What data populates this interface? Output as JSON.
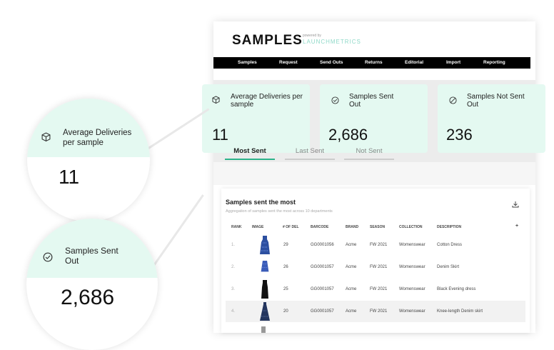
{
  "app": {
    "logo": "SAMPLES",
    "powered_by": "powered by",
    "powered_brand": "LAUNCHMETRICS"
  },
  "nav": {
    "items": [
      "Samples",
      "Request",
      "Send Outs",
      "Returns",
      "Editorial",
      "Import",
      "Reporting"
    ]
  },
  "stats": [
    {
      "label": "Average Deliveries per sample",
      "value": "11",
      "icon": "box-icon"
    },
    {
      "label": "Samples Sent Out",
      "value": "2,686",
      "icon": "check-circle-icon"
    },
    {
      "label": "Samples Not Sent Out",
      "value": "236",
      "icon": "blocked-circle-icon"
    }
  ],
  "zoom": {
    "avg": {
      "label_line1": "Average Deliveries",
      "label_line2": "per sample",
      "value": "11"
    },
    "sent": {
      "label_line1": "Samples Sent",
      "label_line2": "Out",
      "value": "2,686"
    }
  },
  "tabs": [
    {
      "label": "Most Sent",
      "active": true
    },
    {
      "label": "Last Sent",
      "active": false
    },
    {
      "label": "Not Sent",
      "active": false
    }
  ],
  "table": {
    "title": "Samples sent the most",
    "subtitle": "Aggregation of samples sent the most across 10 departments",
    "columns": [
      "RANK",
      "IMAGE",
      "# OF DEL",
      "BARCODE",
      "BRAND",
      "SEASON",
      "COLLECTION",
      "DESCRIPTION",
      "+"
    ],
    "rows": [
      {
        "rank": "1.",
        "del": "29",
        "barcode": "GG0001056",
        "brand": "Acme",
        "season": "FW 2021",
        "collection": "Womenswear",
        "description": "Cotton Dress",
        "dress_color": "#2c4fa0"
      },
      {
        "rank": "2.",
        "del": "26",
        "barcode": "GG0001057",
        "brand": "Acme",
        "season": "FW 2021",
        "collection": "Womenswear",
        "description": "Denim Skirt",
        "dress_color": "#3a5cb8"
      },
      {
        "rank": "3.",
        "del": "25",
        "barcode": "GG0001057",
        "brand": "Acme",
        "season": "FW 2021",
        "collection": "Womenswear",
        "description": "Black Evening dress",
        "dress_color": "#111111"
      },
      {
        "rank": "4.",
        "del": "20",
        "barcode": "GG0001057",
        "brand": "Acme",
        "season": "FW 2021",
        "collection": "Womenswear",
        "description": "Knee-length Denim skirt",
        "dress_color": "#24365e"
      }
    ]
  },
  "colors": {
    "accent": "#2db38a",
    "card_bg": "#e4f9f1",
    "nav_bg": "#000000"
  }
}
